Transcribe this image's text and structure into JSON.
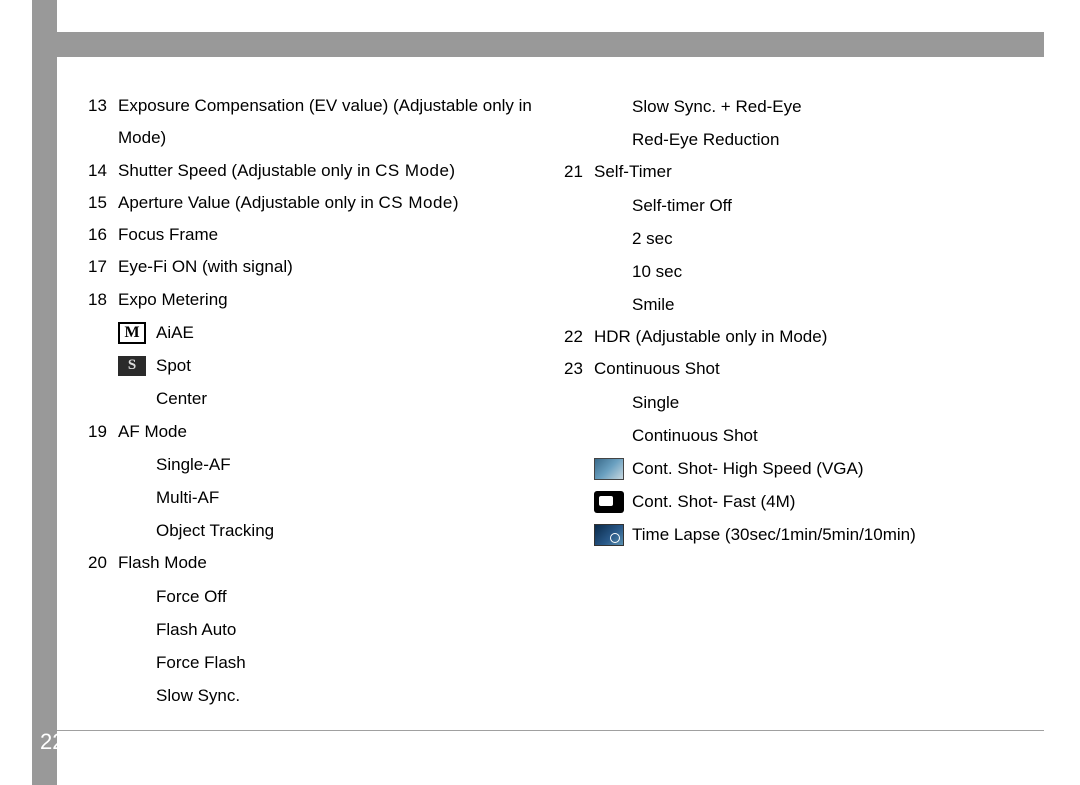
{
  "page_number": "22",
  "left": {
    "items": [
      {
        "num": "13",
        "text": "Exposure Compensation (EV value) (Adjustable only in           Mode)"
      },
      {
        "num": "14",
        "text": "Shutter Speed (Adjustable only in        ",
        "suffix_cs": "CS Mode)"
      },
      {
        "num": "15",
        "text": "Aperture Value (Adjustable only in       ",
        "suffix_cs": "CS Mode)"
      },
      {
        "num": "16",
        "text": "Focus Frame"
      },
      {
        "num": "17",
        "text": "Eye-Fi ON (with signal)"
      },
      {
        "num": "18",
        "text": "Expo Metering"
      }
    ],
    "metering_subs": [
      {
        "icon": "m",
        "label": "AiAE"
      },
      {
        "icon": "s",
        "label": "Spot"
      },
      {
        "icon": "",
        "label": "Center"
      }
    ],
    "item19": {
      "num": "19",
      "text": "AF Mode"
    },
    "af_subs": [
      "Single-AF",
      "Multi-AF",
      "Object Tracking"
    ],
    "item20": {
      "num": "20",
      "text": "Flash Mode"
    },
    "flash_subs": [
      "Force Off",
      "Flash Auto",
      "Force Flash",
      "Slow Sync."
    ]
  },
  "right": {
    "flash_cont_subs": [
      "Slow Sync. + Red-Eye",
      "Red-Eye Reduction"
    ],
    "item21": {
      "num": "21",
      "text": "Self-Timer"
    },
    "timer_subs": [
      "Self-timer Off",
      "2 sec",
      "10 sec",
      "Smile"
    ],
    "item22": {
      "num": "22",
      "text": "HDR (Adjustable only in                 Mode)"
    },
    "item23": {
      "num": "23",
      "text": "Continuous Shot"
    },
    "cont_subs": [
      {
        "icon": "",
        "label": "Single"
      },
      {
        "icon": "",
        "label": "Continuous Shot"
      },
      {
        "icon": "photo",
        "label": "Cont. Shot- High Speed (VGA)"
      },
      {
        "icon": "cam",
        "label": "Cont. Shot- Fast (4M)"
      },
      {
        "icon": "time",
        "label": "Time Lapse (30sec/1min/5min/10min)"
      }
    ]
  }
}
